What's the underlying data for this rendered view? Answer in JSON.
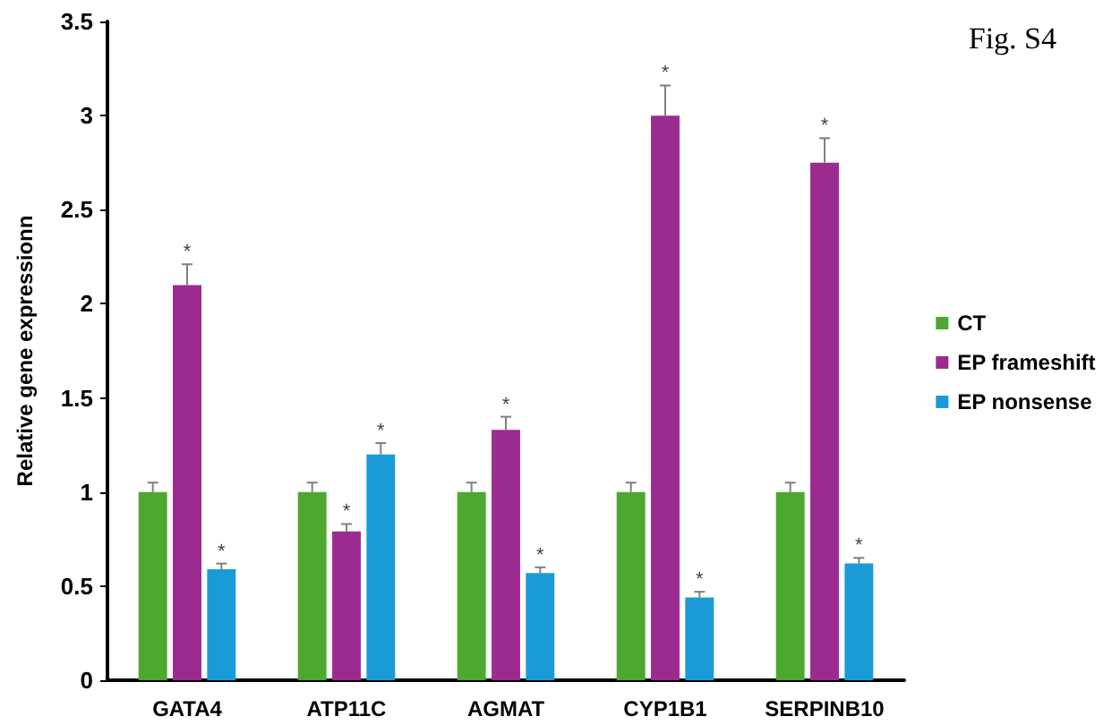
{
  "chart_data": {
    "type": "bar",
    "title": "Fig. S4",
    "ylabel": "Relative gene expressionn",
    "categories": [
      "GATA4",
      "ATP11C",
      "AGMAT",
      "CYP1B1",
      "SERPINB10"
    ],
    "series": [
      {
        "name": "CT",
        "color": "#4ea72e",
        "values": [
          1,
          1,
          1,
          1,
          1
        ],
        "errors": [
          [
            1,
            1.05
          ],
          [
            1,
            1.05
          ],
          [
            1,
            1.05
          ],
          [
            1,
            1.05
          ],
          [
            1,
            1.05
          ]
        ]
      },
      {
        "name": "EP frameshift",
        "color": "#9c2b8f",
        "values": [
          2.1,
          0.79,
          1.33,
          3.0,
          2.75
        ],
        "errors": [
          [
            2.1,
            2.21
          ],
          [
            0.79,
            0.83
          ],
          [
            1.33,
            1.4
          ],
          [
            3.0,
            3.16
          ],
          [
            2.75,
            2.88
          ]
        ],
        "value_labels": [
          "*",
          "*",
          "*",
          "*",
          "*"
        ]
      },
      {
        "name": "EP nonsense",
        "color": "#1a9bd7",
        "values": [
          0.59,
          1.2,
          0.57,
          0.44,
          0.62
        ],
        "errors": [
          [
            0.59,
            0.62
          ],
          [
            1.2,
            1.26
          ],
          [
            0.57,
            0.6
          ],
          [
            0.44,
            0.47
          ],
          [
            0.62,
            0.65
          ]
        ],
        "value_labels": [
          "*",
          "*",
          "*",
          "*",
          "*"
        ]
      }
    ],
    "ylim": [
      0,
      3.5
    ],
    "yticks": [
      0,
      0.5,
      1,
      1.5,
      2,
      2.5,
      3,
      3.5
    ],
    "grid": false,
    "legend": "right"
  }
}
